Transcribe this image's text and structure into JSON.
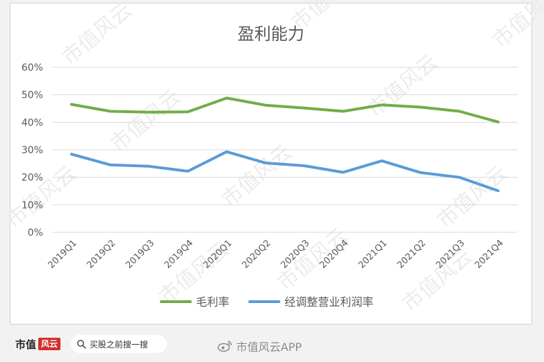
{
  "chart_data": {
    "type": "line",
    "title": "盈利能力",
    "categories": [
      "2019Q1",
      "2019Q2",
      "2019Q3",
      "2019Q4",
      "2020Q1",
      "2020Q2",
      "2020Q3",
      "2020Q4",
      "2021Q1",
      "2021Q2",
      "2021Q3",
      "2021Q4"
    ],
    "series": [
      {
        "name": "毛利率",
        "color": "#70ad47",
        "values": [
          46.5,
          44.0,
          43.7,
          43.8,
          48.8,
          46.2,
          45.2,
          44.0,
          46.3,
          45.5,
          44.0,
          40.1
        ]
      },
      {
        "name": "经调整营业利润率",
        "color": "#5b9bd5",
        "values": [
          28.4,
          24.5,
          24.0,
          22.2,
          29.3,
          25.2,
          24.2,
          21.8,
          26.0,
          21.7,
          20.0,
          15.1
        ]
      }
    ],
    "ylim": [
      0,
      60
    ],
    "y_ticks": [
      "0%",
      "10%",
      "20%",
      "30%",
      "40%",
      "50%",
      "60%"
    ],
    "xlabel": "",
    "ylabel": "",
    "grid": true,
    "legend": "bottom"
  },
  "watermark": "市值风云",
  "footer": {
    "logo_text": "市值",
    "logo_badge": "风云",
    "search_icon": "search-icon",
    "search_placeholder": "买股之前搜一搜",
    "weibo_icon": "weibo-icon",
    "weibo_text": "市值风云APP"
  }
}
